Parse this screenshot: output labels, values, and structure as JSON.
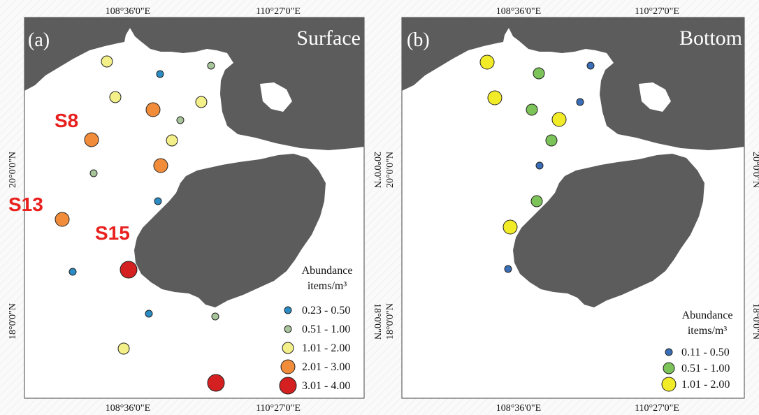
{
  "panels": [
    {
      "id": "a",
      "tag": "(a)",
      "title": "Surface",
      "lon_ticks": [
        "108°36'0\"E",
        "110°27'0\"E"
      ],
      "lat_ticks": [
        "20°0'0\"N",
        "18°0'0\"N"
      ],
      "legend": {
        "title_line1": "Abundance",
        "title_line2": "items/m³",
        "classes": [
          {
            "range": "0.23 - 0.50",
            "color": "#2b8cc4",
            "size": "smallest"
          },
          {
            "range": "0.51 - 1.00",
            "color": "#a7c49a",
            "size": "small"
          },
          {
            "range": "1.01 - 2.00",
            "color": "#f3f08a",
            "size": "medium"
          },
          {
            "range": "2.01 - 3.00",
            "color": "#f08c3a",
            "size": "large"
          },
          {
            "range": "3.01 - 4.00",
            "color": "#d42020",
            "size": "largest"
          }
        ]
      },
      "station_labels": [
        "S8",
        "S13",
        "S15"
      ],
      "stations": [
        {
          "class": 2
        },
        {
          "class": 0
        },
        {
          "class": 1
        },
        {
          "class": 2
        },
        {
          "class": 3
        },
        {
          "class": 2
        },
        {
          "class": 1
        },
        {
          "class": 3
        },
        {
          "class": 2
        },
        {
          "class": 1
        },
        {
          "class": 3
        },
        {
          "class": 0
        },
        {
          "class": 3
        },
        {
          "class": 0
        },
        {
          "class": 4
        },
        {
          "class": 0
        },
        {
          "class": 1
        },
        {
          "class": 2
        },
        {
          "class": 4
        }
      ]
    },
    {
      "id": "b",
      "tag": "(b)",
      "title": "Bottom",
      "lon_ticks": [
        "108°36'0\"E",
        "110°27'0\"E"
      ],
      "lat_ticks": [
        "20°0'0\"N",
        "18°0'0\"N"
      ],
      "legend": {
        "title_line1": "Abundance",
        "title_line2": "items/m³",
        "classes": [
          {
            "range": "0.11 - 0.50",
            "color": "#3a6fb8",
            "size": "small"
          },
          {
            "range": "0.51 - 1.00",
            "color": "#7cc35a",
            "size": "medium"
          },
          {
            "range": "1.01 - 2.00",
            "color": "#f2ec28",
            "size": "large"
          }
        ]
      },
      "stations": [
        {
          "class": 2
        },
        {
          "class": 1
        },
        {
          "class": 0
        },
        {
          "class": 2
        },
        {
          "class": 1
        },
        {
          "class": 0
        },
        {
          "class": 2
        },
        {
          "class": 1
        },
        {
          "class": 0
        },
        {
          "class": 1
        },
        {
          "class": 2
        },
        {
          "class": 0
        }
      ]
    }
  ]
}
